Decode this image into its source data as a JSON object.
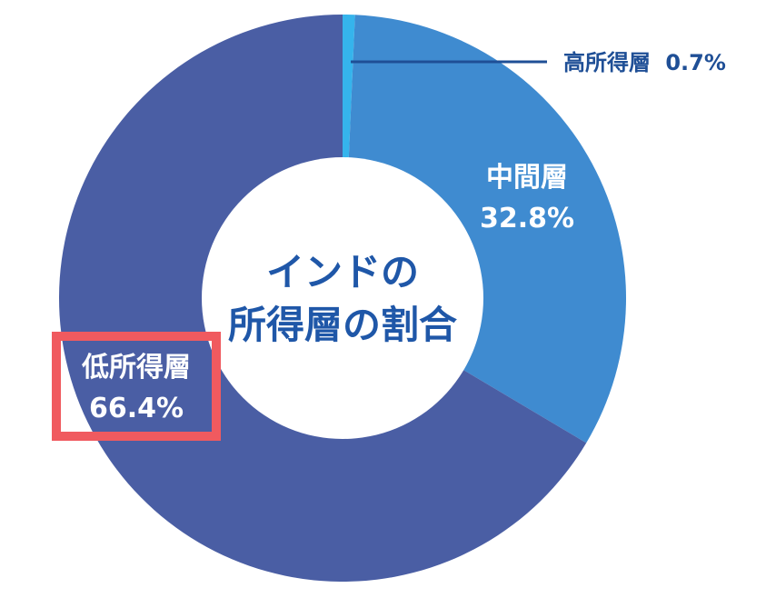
{
  "chart_data": {
    "type": "pie",
    "title_lines": [
      "インドの",
      "所得層の割合"
    ],
    "slices": [
      {
        "name": "高所得層",
        "value": 0.7,
        "value_label": "0.7%",
        "color": "#35b4ec"
      },
      {
        "name": "中間層",
        "value": 32.8,
        "value_label": "32.8%",
        "color": "#3f8bd0"
      },
      {
        "name": "低所得層",
        "value": 66.4,
        "value_label": "66.4%",
        "color": "#4a5ea4"
      }
    ],
    "highlighted": "低所得層",
    "highlight_color": "#f05a5f"
  }
}
